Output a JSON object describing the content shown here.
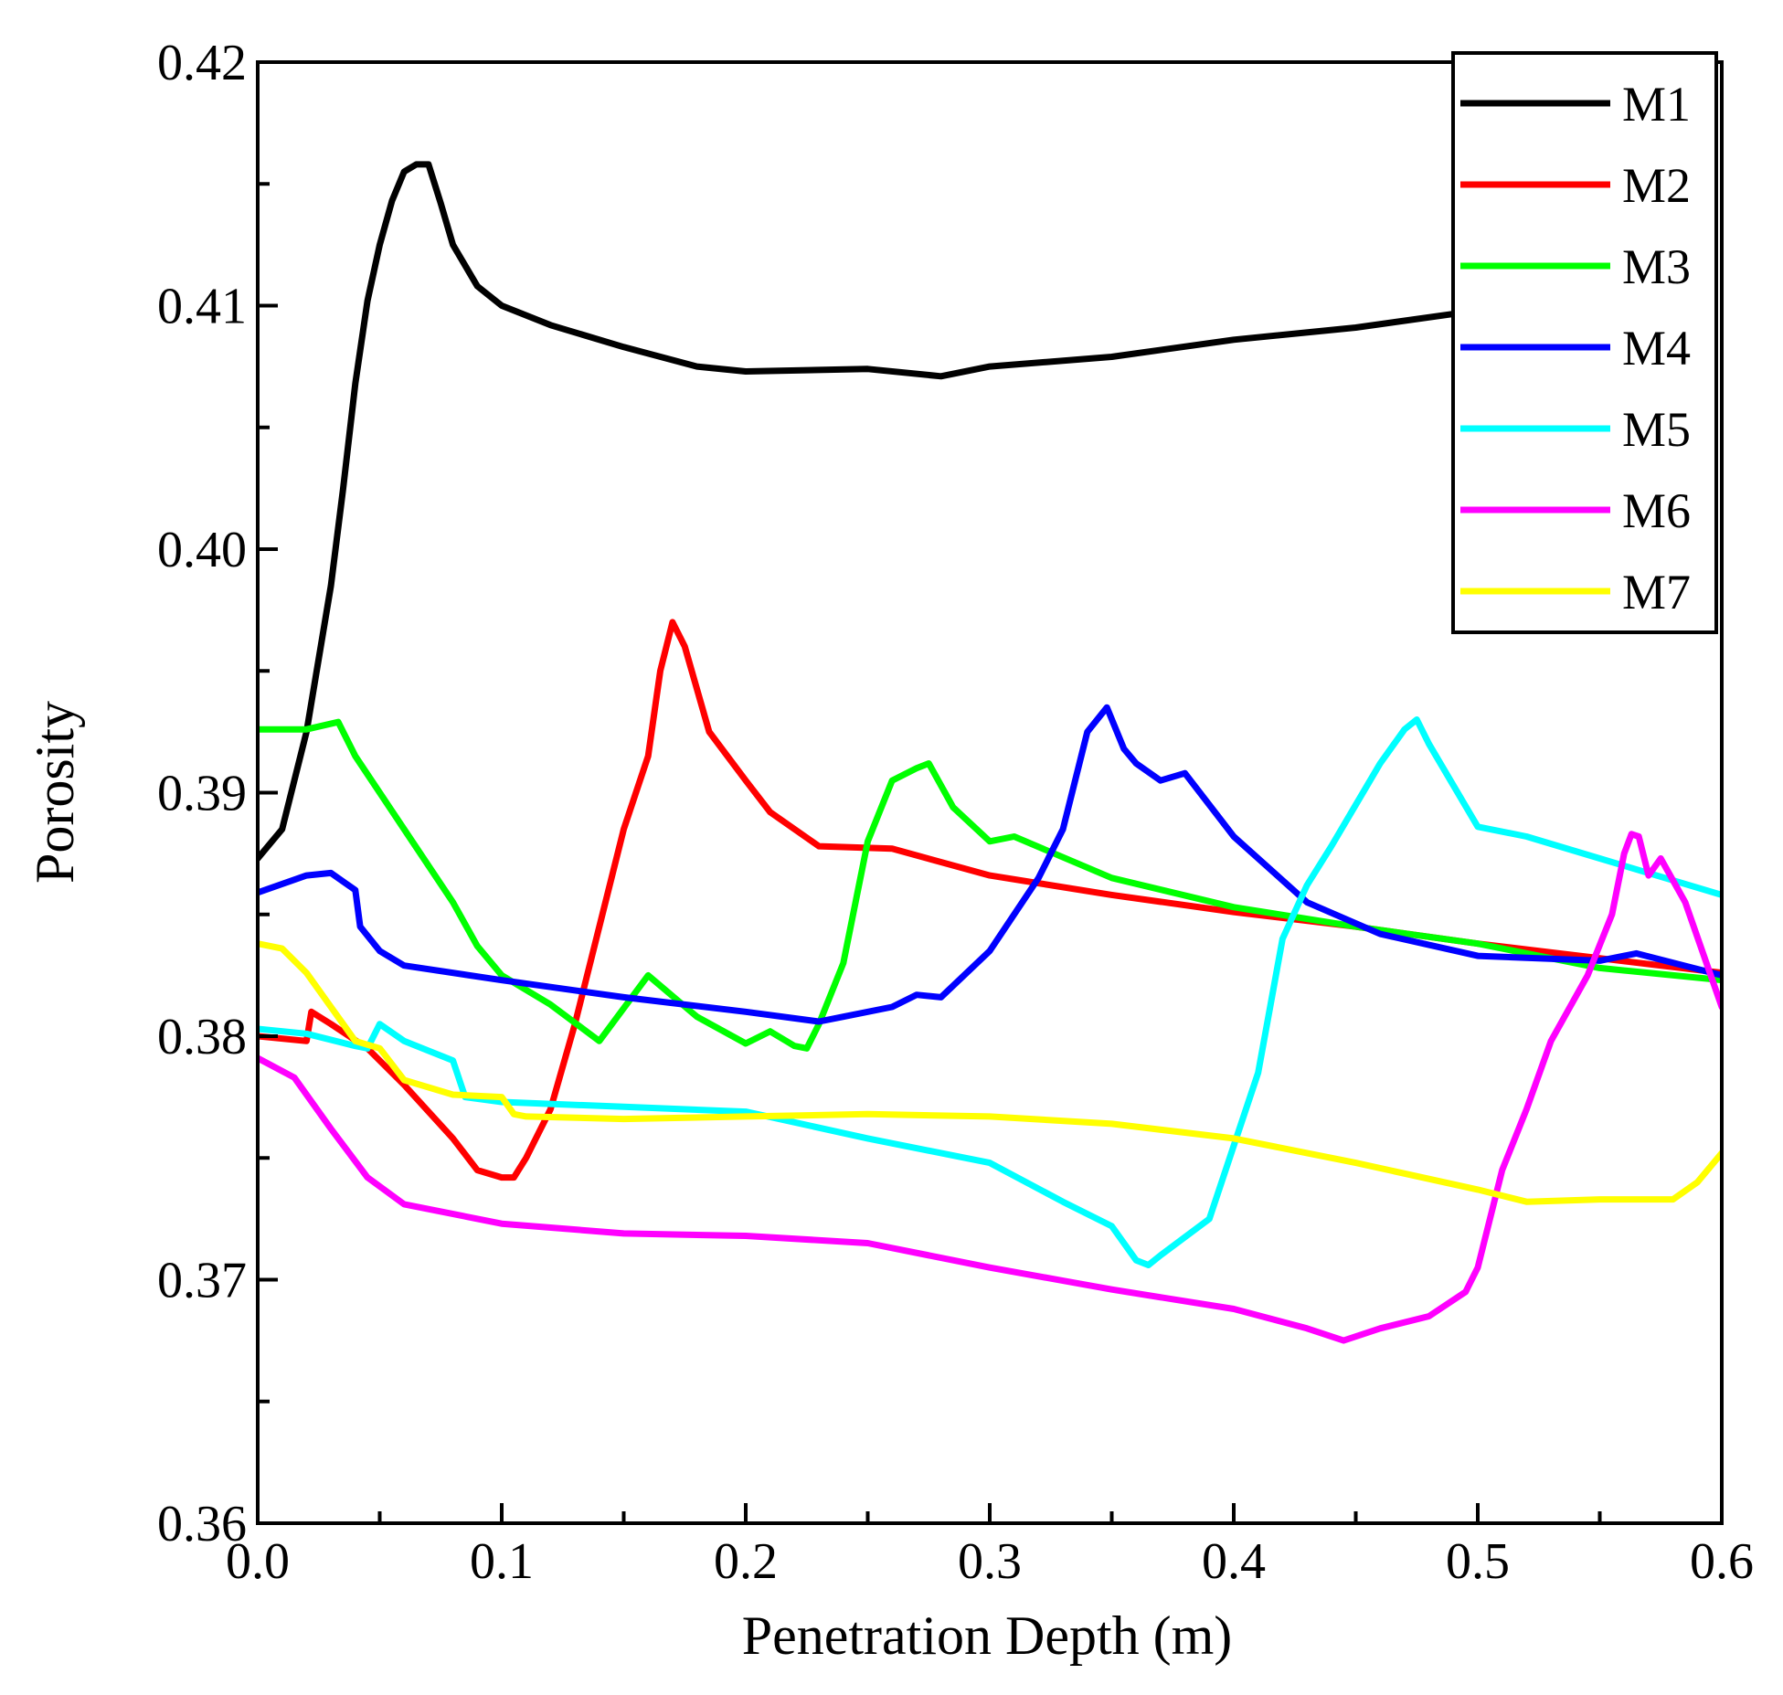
{
  "chart_data": {
    "type": "line",
    "title": "",
    "xlabel": "Penetration Depth (m)",
    "ylabel": "Porosity",
    "xlim": [
      0.0,
      0.6
    ],
    "ylim": [
      0.36,
      0.42
    ],
    "x_ticks": [
      0.0,
      0.1,
      0.2,
      0.3,
      0.4,
      0.5,
      0.6
    ],
    "x_tick_labels": [
      "0.0",
      "0.1",
      "0.2",
      "0.3",
      "0.4",
      "0.5",
      "0.6"
    ],
    "y_ticks": [
      0.36,
      0.37,
      0.38,
      0.39,
      0.4,
      0.41,
      0.42
    ],
    "y_tick_labels": [
      "0.36",
      "0.37",
      "0.38",
      "0.39",
      "0.40",
      "0.41",
      "0.42"
    ],
    "grid": false,
    "legend_position": "top-right",
    "series": [
      {
        "name": "M1",
        "color": "#000000",
        "x": [
          0.0,
          0.01,
          0.02,
          0.03,
          0.035,
          0.04,
          0.045,
          0.05,
          0.055,
          0.06,
          0.065,
          0.07,
          0.075,
          0.08,
          0.09,
          0.1,
          0.12,
          0.15,
          0.18,
          0.2,
          0.25,
          0.28,
          0.3,
          0.35,
          0.4,
          0.45,
          0.5
        ],
        "y": [
          0.3873,
          0.3885,
          0.3925,
          0.3985,
          0.4025,
          0.4068,
          0.4102,
          0.4125,
          0.4143,
          0.4155,
          0.4158,
          0.4158,
          0.4142,
          0.4125,
          0.4108,
          0.41,
          0.4092,
          0.4083,
          0.4075,
          0.4073,
          0.4074,
          0.4071,
          0.4075,
          0.4079,
          0.4086,
          0.4091,
          0.4098
        ]
      },
      {
        "name": "M2",
        "color": "#ff0000",
        "x": [
          0.0,
          0.02,
          0.022,
          0.03,
          0.045,
          0.06,
          0.08,
          0.09,
          0.1,
          0.105,
          0.11,
          0.12,
          0.13,
          0.14,
          0.15,
          0.16,
          0.165,
          0.17,
          0.175,
          0.185,
          0.2,
          0.21,
          0.23,
          0.26,
          0.3,
          0.35,
          0.4,
          0.45,
          0.5,
          0.55,
          0.6
        ],
        "y": [
          0.38,
          0.3798,
          0.381,
          0.3805,
          0.3795,
          0.378,
          0.3758,
          0.3745,
          0.3742,
          0.3742,
          0.375,
          0.377,
          0.3805,
          0.3845,
          0.3885,
          0.3915,
          0.395,
          0.397,
          0.396,
          0.3925,
          0.3905,
          0.3892,
          0.3878,
          0.3877,
          0.3866,
          0.3858,
          0.3851,
          0.3845,
          0.3838,
          0.3832,
          0.3826
        ]
      },
      {
        "name": "M3",
        "color": "#00ff00",
        "x": [
          0.0,
          0.02,
          0.033,
          0.04,
          0.06,
          0.08,
          0.09,
          0.1,
          0.12,
          0.14,
          0.16,
          0.18,
          0.2,
          0.21,
          0.22,
          0.225,
          0.23,
          0.24,
          0.25,
          0.26,
          0.27,
          0.275,
          0.285,
          0.3,
          0.31,
          0.35,
          0.4,
          0.45,
          0.5,
          0.55,
          0.6
        ],
        "y": [
          0.3926,
          0.3926,
          0.3929,
          0.3915,
          0.3885,
          0.3855,
          0.3837,
          0.3825,
          0.3813,
          0.3798,
          0.3825,
          0.3808,
          0.3797,
          0.3802,
          0.3796,
          0.3795,
          0.3805,
          0.383,
          0.388,
          0.3905,
          0.391,
          0.3912,
          0.3894,
          0.388,
          0.3882,
          0.3865,
          0.3853,
          0.3845,
          0.3838,
          0.3828,
          0.3823
        ]
      },
      {
        "name": "M4",
        "color": "#0000ff",
        "x": [
          0.0,
          0.02,
          0.03,
          0.04,
          0.042,
          0.05,
          0.06,
          0.1,
          0.15,
          0.2,
          0.23,
          0.24,
          0.26,
          0.27,
          0.28,
          0.3,
          0.32,
          0.33,
          0.34,
          0.348,
          0.355,
          0.36,
          0.37,
          0.38,
          0.4,
          0.43,
          0.46,
          0.5,
          0.55,
          0.565,
          0.6
        ],
        "y": [
          0.3859,
          0.3866,
          0.3867,
          0.386,
          0.3845,
          0.3835,
          0.3829,
          0.3823,
          0.3816,
          0.381,
          0.3806,
          0.3808,
          0.3812,
          0.3817,
          0.3816,
          0.3835,
          0.3865,
          0.3885,
          0.3925,
          0.3935,
          0.3918,
          0.3912,
          0.3905,
          0.3908,
          0.3882,
          0.3855,
          0.3842,
          0.3833,
          0.3831,
          0.3834,
          0.3825
        ]
      },
      {
        "name": "M5",
        "color": "#00ffff",
        "x": [
          0.0,
          0.02,
          0.04,
          0.045,
          0.05,
          0.06,
          0.08,
          0.085,
          0.1,
          0.15,
          0.2,
          0.25,
          0.3,
          0.33,
          0.35,
          0.36,
          0.365,
          0.37,
          0.39,
          0.4,
          0.41,
          0.42,
          0.43,
          0.44,
          0.45,
          0.46,
          0.47,
          0.475,
          0.48,
          0.5,
          0.52,
          0.55,
          0.6
        ],
        "y": [
          0.3803,
          0.3801,
          0.3796,
          0.3795,
          0.3805,
          0.3798,
          0.379,
          0.3775,
          0.3773,
          0.3771,
          0.3769,
          0.3758,
          0.3748,
          0.3732,
          0.3722,
          0.3708,
          0.3706,
          0.371,
          0.3725,
          0.3755,
          0.3785,
          0.384,
          0.3862,
          0.3878,
          0.3895,
          0.3912,
          0.3926,
          0.393,
          0.392,
          0.3886,
          0.3882,
          0.3873,
          0.3858
        ]
      },
      {
        "name": "M6",
        "color": "#ff00ff",
        "x": [
          0.0,
          0.015,
          0.03,
          0.045,
          0.06,
          0.1,
          0.15,
          0.2,
          0.25,
          0.3,
          0.35,
          0.4,
          0.43,
          0.445,
          0.46,
          0.48,
          0.495,
          0.5,
          0.51,
          0.52,
          0.53,
          0.545,
          0.555,
          0.56,
          0.563,
          0.566,
          0.57,
          0.575,
          0.585,
          0.6
        ],
        "y": [
          0.3791,
          0.3783,
          0.3762,
          0.3742,
          0.3731,
          0.3723,
          0.3719,
          0.3718,
          0.3715,
          0.3705,
          0.3696,
          0.3688,
          0.368,
          0.3675,
          0.368,
          0.3685,
          0.3695,
          0.3705,
          0.3745,
          0.377,
          0.3798,
          0.3825,
          0.385,
          0.3875,
          0.3883,
          0.3882,
          0.3866,
          0.3873,
          0.3855,
          0.3812
        ]
      },
      {
        "name": "M7",
        "color": "#ffff00",
        "x": [
          0.0,
          0.01,
          0.02,
          0.03,
          0.04,
          0.05,
          0.06,
          0.08,
          0.1,
          0.105,
          0.11,
          0.15,
          0.2,
          0.25,
          0.3,
          0.35,
          0.4,
          0.45,
          0.5,
          0.52,
          0.55,
          0.58,
          0.59,
          0.6
        ],
        "y": [
          0.3838,
          0.3836,
          0.3826,
          0.3812,
          0.3798,
          0.3795,
          0.3782,
          0.3776,
          0.3775,
          0.3768,
          0.3767,
          0.3766,
          0.3767,
          0.3768,
          0.3767,
          0.3764,
          0.3758,
          0.3748,
          0.3737,
          0.3732,
          0.3733,
          0.3733,
          0.374,
          0.3752
        ]
      }
    ]
  }
}
